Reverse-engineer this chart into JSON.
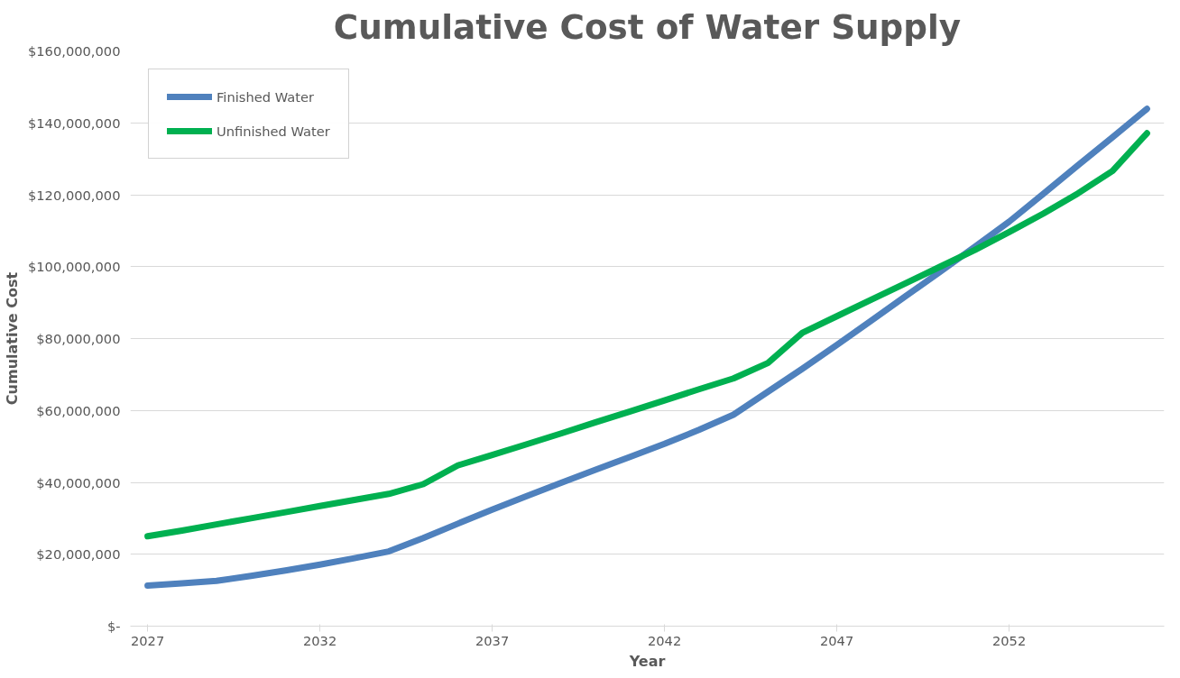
{
  "chart_data": {
    "type": "line",
    "title": "Cumulative Cost of Water Supply",
    "xlabel": "Year",
    "ylabel": "Cumulative Cost",
    "x": [
      2027,
      2028,
      2029,
      2030,
      2031,
      2032,
      2033,
      2034,
      2035,
      2036,
      2037,
      2038,
      2039,
      2040,
      2041,
      2042,
      2043,
      2044,
      2045,
      2046,
      2047,
      2048,
      2049,
      2050,
      2051,
      2052,
      2053,
      2054,
      2055,
      2056
    ],
    "series": [
      {
        "name": "Finished Water",
        "color": "#4f81bd",
        "values": [
          11300000,
          11900000,
          12600000,
          14000000,
          15500000,
          17100000,
          18900000,
          20800000,
          24500000,
          28500000,
          32400000,
          36200000,
          39900000,
          43500000,
          47100000,
          50700000,
          54600000,
          58800000,
          65200000,
          71600000,
          78200000,
          85000000,
          91800000,
          98600000,
          105500000,
          112500000,
          120300000,
          128200000,
          136000000,
          143900000
        ]
      },
      {
        "name": "Unfinished Water",
        "color": "#00b050",
        "values": [
          25000000,
          26600000,
          28300000,
          30000000,
          31700000,
          33400000,
          35100000,
          36800000,
          39500000,
          44700000,
          47600000,
          50600000,
          53600000,
          56700000,
          59700000,
          62800000,
          65900000,
          68900000,
          73200000,
          81600000,
          86200000,
          90800000,
          95400000,
          100000000,
          104600000,
          109600000,
          114800000,
          120400000,
          126600000,
          137100000
        ]
      }
    ],
    "xlim": [
      2026.5,
      2056.5
    ],
    "xticks": [
      2027,
      2032,
      2037,
      2042,
      2047,
      2052
    ],
    "ylim": [
      0,
      160000000
    ],
    "yticks": [
      {
        "value": 0,
        "label": "$-"
      },
      {
        "value": 20000000,
        "label": "$20,000,000"
      },
      {
        "value": 40000000,
        "label": "$40,000,000"
      },
      {
        "value": 60000000,
        "label": "$60,000,000"
      },
      {
        "value": 80000000,
        "label": "$80,000,000"
      },
      {
        "value": 100000000,
        "label": "$100,000,000"
      },
      {
        "value": 120000000,
        "label": "$120,000,000"
      },
      {
        "value": 140000000,
        "label": "$140,000,000"
      },
      {
        "value": 160000000,
        "label": "$160,000,000"
      }
    ],
    "grid": "y",
    "legend": "top left",
    "marker": "none",
    "line_style": "solid"
  }
}
